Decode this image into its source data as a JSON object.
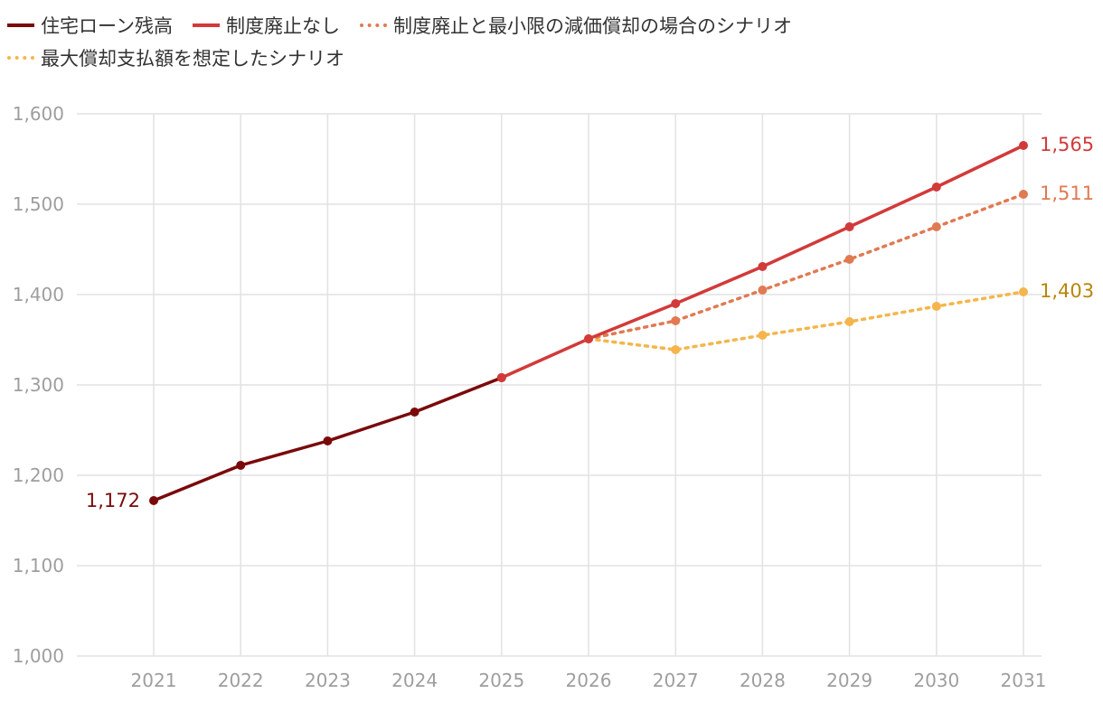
{
  "chart_data": {
    "type": "line",
    "categories": [
      "2021",
      "2022",
      "2023",
      "2024",
      "2025",
      "2026",
      "2027",
      "2028",
      "2029",
      "2030",
      "2031"
    ],
    "ylim": [
      1000,
      1600
    ],
    "yticks": [
      1000,
      1100,
      1200,
      1300,
      1400,
      1500,
      1600
    ],
    "ytick_labels": [
      "1,000",
      "1,100",
      "1,200",
      "1,300",
      "1,400",
      "1,500",
      "1,600"
    ],
    "grid": true,
    "legend_position": "top-left",
    "series": [
      {
        "name": "住宅ローン残高",
        "color": "#7a0a0a",
        "style": "solid",
        "values": [
          1172,
          1211,
          1238,
          1270,
          1308,
          null,
          null,
          null,
          null,
          null,
          null
        ],
        "start_label": "1,172"
      },
      {
        "name": "制度廃止なし",
        "color": "#d23a3a",
        "style": "solid",
        "values": [
          null,
          null,
          null,
          null,
          1308,
          1351,
          1390,
          1431,
          1475,
          1519,
          1565
        ],
        "end_label": "1,565"
      },
      {
        "name": "制度廃止と最小限の減価償却の場合のシナリオ",
        "color": "#e07a52",
        "style": "dotted",
        "values": [
          null,
          null,
          null,
          null,
          null,
          1351,
          1371,
          1405,
          1439,
          1475,
          1511
        ],
        "end_label": "1,511"
      },
      {
        "name": "最大償却支払額を想定したシナリオ",
        "color": "#f5b54c",
        "style": "dotted",
        "values": [
          null,
          null,
          null,
          null,
          null,
          1351,
          1339,
          1355,
          1370,
          1387,
          1403
        ],
        "end_label": "1,403"
      }
    ],
    "end_label_colors": {
      "start": "#7a0a0a",
      "s1": "#d23a3a",
      "s2": "#e07a52",
      "s3": "#b8860b"
    }
  }
}
